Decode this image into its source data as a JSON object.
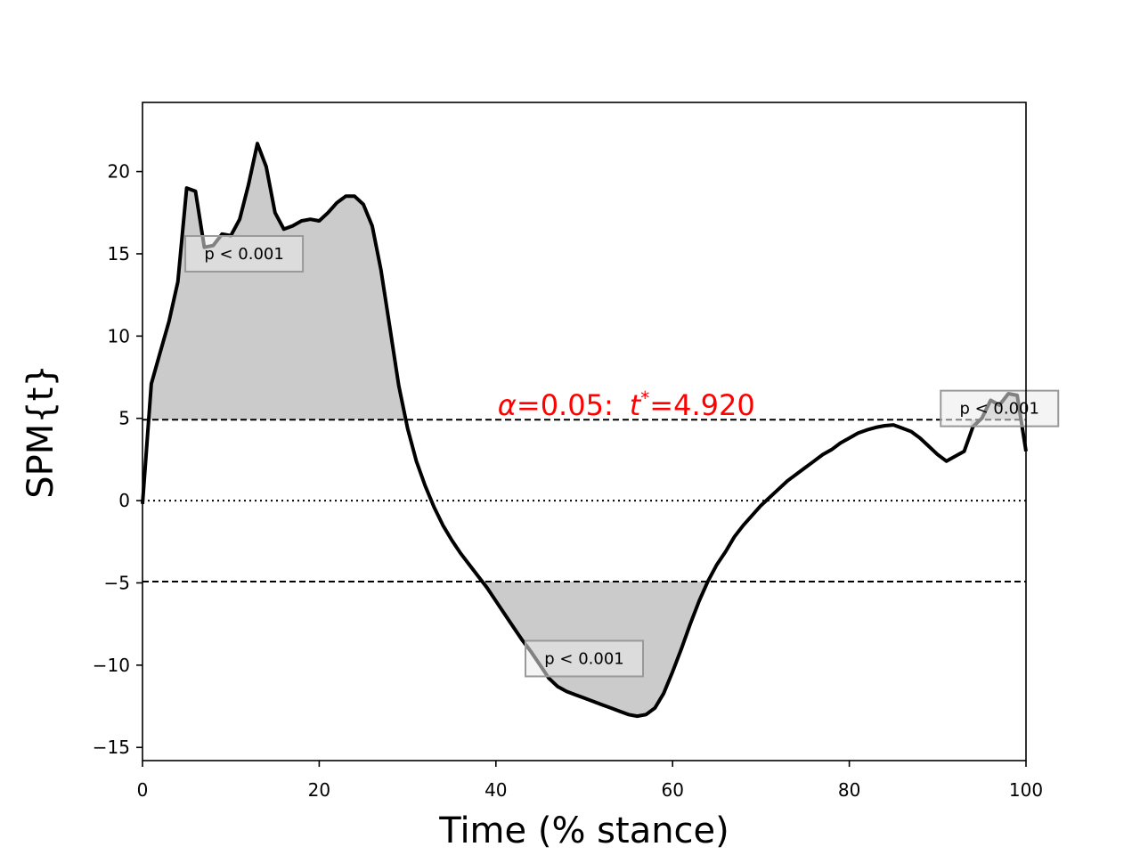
{
  "chart_data": {
    "type": "line",
    "title": "",
    "xlabel": "Time (% stance)",
    "ylabel": "SPM{t}",
    "xlim": [
      0,
      100
    ],
    "ylim": [
      -15.8,
      24.2
    ],
    "xticks": [
      0,
      20,
      40,
      60,
      80,
      100
    ],
    "yticks": [
      -15,
      -10,
      -5,
      0,
      5,
      10,
      15,
      20
    ],
    "xtick_labels": [
      "0",
      "20",
      "40",
      "60",
      "80",
      "100"
    ],
    "ytick_labels": [
      "−15",
      "−10",
      "−5",
      "0",
      "5",
      "10",
      "15",
      "20"
    ],
    "threshold": 4.92,
    "threshold_label_parts": {
      "alpha_symbol": "α",
      "alpha_value": "=0.05:",
      "t_symbol": "t",
      "t_sup": "*",
      "t_value": "=4.920"
    },
    "series": [
      {
        "x": [
          0,
          1,
          2,
          3,
          4,
          5,
          6,
          7,
          8,
          9,
          10,
          11,
          12,
          13,
          14,
          15,
          16,
          17,
          18,
          19,
          20,
          21,
          22,
          23,
          24,
          25,
          26,
          27,
          28,
          29,
          30,
          31,
          32,
          33,
          34,
          35,
          36,
          37,
          38,
          39,
          40,
          41,
          42,
          43,
          44,
          45,
          46,
          47,
          48,
          49,
          50,
          51,
          52,
          53,
          54,
          55,
          56,
          57,
          58,
          59,
          60,
          61,
          62,
          63,
          64,
          65,
          66,
          67,
          68,
          69,
          70,
          71,
          72,
          73,
          74,
          75,
          76,
          77,
          78,
          79,
          80,
          81,
          82,
          83,
          84,
          85,
          86,
          87,
          88,
          89,
          90,
          91,
          92,
          93,
          94,
          95,
          96,
          97,
          98,
          99,
          100
        ],
        "y": [
          -0.2,
          7.1,
          9.0,
          10.9,
          13.3,
          19.0,
          18.8,
          15.4,
          15.5,
          16.2,
          16.1,
          17.1,
          19.2,
          21.7,
          20.3,
          17.5,
          16.5,
          16.7,
          17.0,
          17.1,
          17.0,
          17.5,
          18.1,
          18.5,
          18.5,
          18.0,
          16.7,
          14.0,
          10.5,
          7.0,
          4.4,
          2.4,
          0.9,
          -0.4,
          -1.5,
          -2.4,
          -3.2,
          -3.9,
          -4.6,
          -5.3,
          -6.1,
          -6.9,
          -7.7,
          -8.5,
          -9.2,
          -10.0,
          -10.8,
          -11.3,
          -11.6,
          -11.8,
          -12.0,
          -12.2,
          -12.4,
          -12.6,
          -12.8,
          -13.0,
          -13.1,
          -13.0,
          -12.6,
          -11.7,
          -10.4,
          -9.0,
          -7.5,
          -6.1,
          -4.9,
          -3.9,
          -3.1,
          -2.2,
          -1.5,
          -0.9,
          -0.3,
          0.2,
          0.7,
          1.2,
          1.6,
          2.0,
          2.4,
          2.8,
          3.1,
          3.5,
          3.8,
          4.1,
          4.3,
          4.45,
          4.55,
          4.6,
          4.4,
          4.2,
          3.8,
          3.3,
          2.8,
          2.4,
          2.7,
          3.0,
          4.5,
          5.0,
          6.1,
          5.8,
          6.5,
          6.4,
          3.0
        ]
      }
    ],
    "clusters": [
      {
        "x_start": 0.6,
        "x_end": 29.7,
        "sign": 1,
        "p_label": "p < 0.001",
        "label_at": [
          11.5,
          15.0
        ]
      },
      {
        "x_start": 38.7,
        "x_end": 64.0,
        "sign": -1,
        "p_label": "p < 0.001",
        "label_at": [
          50.0,
          -9.6
        ]
      },
      {
        "x_start": 93.7,
        "x_end": 99.5,
        "sign": 1,
        "p_label": "p < 0.001",
        "label_at": [
          97.0,
          5.6
        ]
      }
    ]
  }
}
